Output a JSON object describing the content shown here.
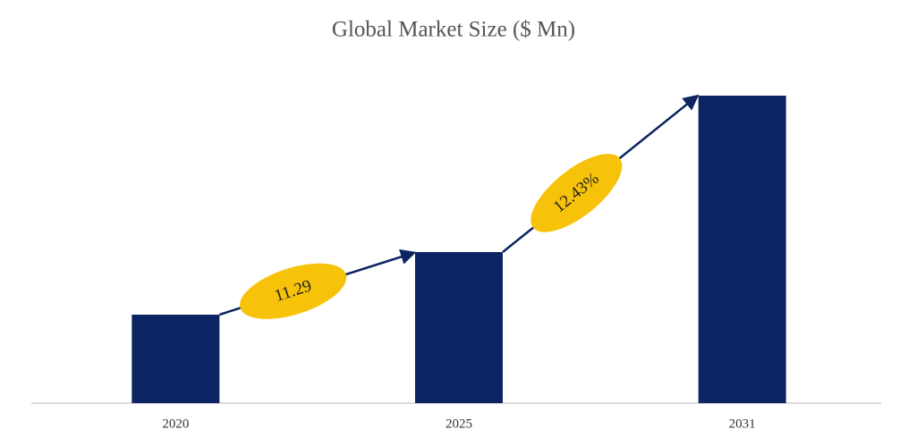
{
  "chart_data": {
    "type": "bar",
    "title": "Global Market Size ($ Mn)",
    "categories": [
      "2020",
      "2025",
      "2031"
    ],
    "values": [
      99,
      169,
      344
    ],
    "color": "#0c2461",
    "ylim": [
      0,
      350
    ],
    "annotations": [
      {
        "text": "11.29",
        "color": "#f7c20a"
      },
      {
        "text": "12.43%",
        "color": "#f7c20a"
      }
    ]
  }
}
